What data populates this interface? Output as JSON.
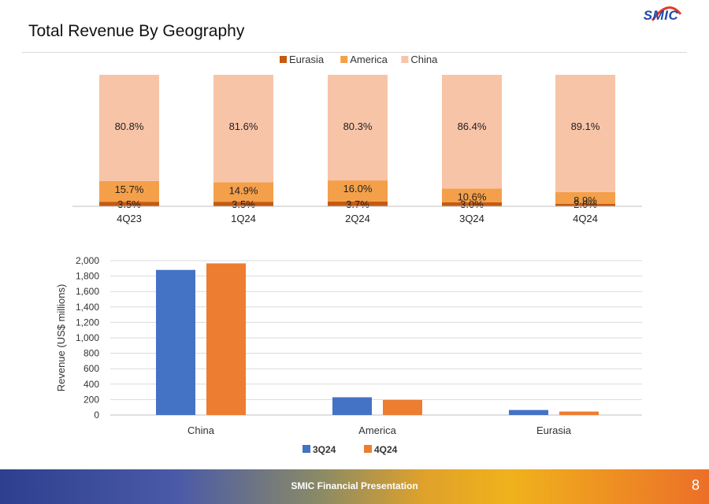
{
  "slide": {
    "title": "Total Revenue By Geography",
    "logo_text": "SMIC",
    "footer_text": "SMIC Financial Presentation",
    "page_number": "8"
  },
  "chart_data": [
    {
      "type": "bar",
      "stacked": true,
      "percent_stacked": true,
      "categories": [
        "4Q23",
        "1Q24",
        "2Q24",
        "3Q24",
        "4Q24"
      ],
      "series": [
        {
          "name": "Eurasia",
          "values": [
            3.5,
            3.5,
            3.7,
            3.0,
            2.0
          ],
          "labels": [
            "3.5%",
            "3.5%",
            "3.7%",
            "3.0%",
            "2.0%"
          ],
          "color": "#C55A11"
        },
        {
          "name": "America",
          "values": [
            15.7,
            14.9,
            16.0,
            10.6,
            8.9
          ],
          "labels": [
            "15.7%",
            "14.9%",
            "16.0%",
            "10.6%",
            "8.9%"
          ],
          "color": "#F4A04A"
        },
        {
          "name": "China",
          "values": [
            80.8,
            81.6,
            80.3,
            86.4,
            89.1
          ],
          "labels": [
            "80.8%",
            "81.6%",
            "80.3%",
            "86.4%",
            "89.1%"
          ],
          "color": "#F8C4A8"
        }
      ],
      "legend_position": "top-center",
      "grid": false
    },
    {
      "type": "bar",
      "categories": [
        "China",
        "America",
        "Eurasia"
      ],
      "series": [
        {
          "name": "3Q24",
          "values": [
            1880,
            230,
            65
          ],
          "color": "#4472C4"
        },
        {
          "name": "4Q24",
          "values": [
            1965,
            195,
            45
          ],
          "color": "#ED7D31"
        }
      ],
      "ylabel": "Revenue (US$ millions)",
      "ylim": [
        0,
        2000
      ],
      "yticks": [
        "0",
        "200",
        "400",
        "600",
        "800",
        "1,000",
        "1,200",
        "1,400",
        "1,600",
        "1,800",
        "2,000"
      ],
      "grid": true,
      "legend_position": "bottom-center"
    }
  ]
}
